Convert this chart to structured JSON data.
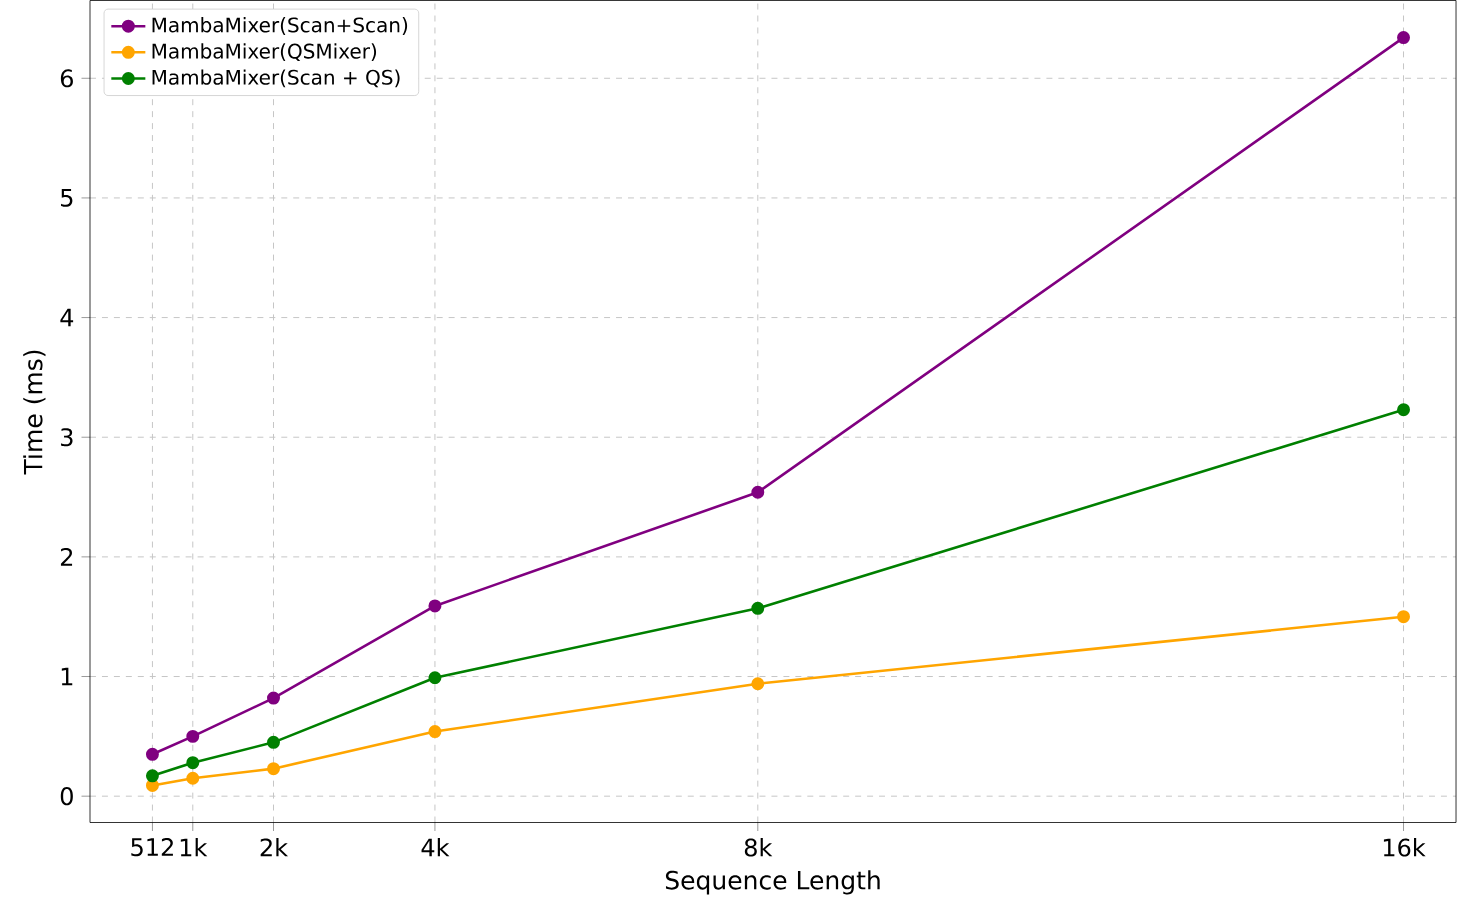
{
  "chart_data": {
    "type": "line",
    "xlabel": "Sequence Length",
    "ylabel": "Time (ms)",
    "x": [
      512,
      1024,
      2048,
      4096,
      8192,
      16384
    ],
    "series": [
      {
        "name": "MambaMixer(Scan+Scan)",
        "color": "#800080",
        "values": [
          0.35,
          0.5,
          0.82,
          1.59,
          2.54,
          6.34
        ]
      },
      {
        "name": "MambaMixer(QSMixer)",
        "color": "#ffa500",
        "values": [
          0.09,
          0.15,
          0.23,
          0.54,
          0.94,
          1.5
        ]
      },
      {
        "name": "MambaMixer(Scan + QS)",
        "color": "#008000",
        "values": [
          0.17,
          0.28,
          0.45,
          0.99,
          1.57,
          3.23
        ]
      }
    ],
    "xlim": [
      -280,
      17050
    ],
    "ylim": [
      -0.22,
      6.65
    ],
    "xticks": [
      {
        "value": 512,
        "label": "512"
      },
      {
        "value": 1024,
        "label": "1k"
      },
      {
        "value": 2048,
        "label": "2k"
      },
      {
        "value": 4096,
        "label": "4k"
      },
      {
        "value": 8192,
        "label": "8k"
      },
      {
        "value": 16384,
        "label": "16k"
      }
    ],
    "yticks": [
      0,
      1,
      2,
      3,
      4,
      5,
      6
    ],
    "grid": true,
    "legend": "top left",
    "marker": "circle",
    "line_style": "solid"
  }
}
